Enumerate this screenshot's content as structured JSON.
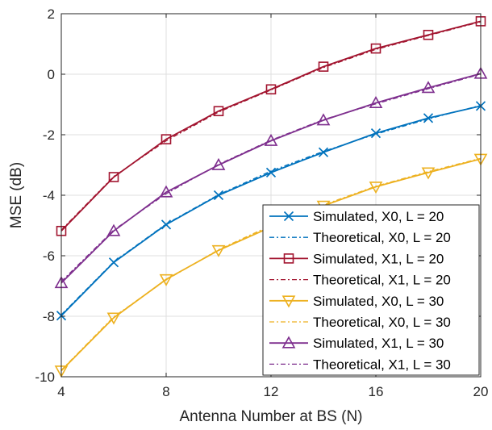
{
  "chart_data": {
    "type": "line",
    "xlabel": "Antenna Number at BS (N)",
    "ylabel": "MSE (dB)",
    "xlim": [
      4,
      20
    ],
    "ylim": [
      -10,
      2
    ],
    "xticks": [
      4,
      8,
      12,
      16,
      20
    ],
    "yticks": [
      -10,
      -8,
      -6,
      -4,
      -2,
      0,
      2
    ],
    "grid": true,
    "legend_position": "lower-right",
    "x": [
      4,
      6,
      8,
      10,
      12,
      14,
      16,
      18,
      20
    ],
    "series": [
      {
        "name": "Simulated, X0, L = 20",
        "values": [
          -7.98,
          -6.22,
          -4.97,
          -4.0,
          -3.25,
          -2.58,
          -1.95,
          -1.45,
          -1.05
        ],
        "color": "#0072BD",
        "line": "solid",
        "marker": "x"
      },
      {
        "name": "Theoretical, X0, L = 20",
        "values": [
          -7.95,
          -6.2,
          -4.95,
          -3.98,
          -3.2,
          -2.55,
          -1.98,
          -1.48,
          -1.03
        ],
        "color": "#0072BD",
        "line": "dashdot",
        "marker": "none"
      },
      {
        "name": "Simulated, X1, L = 20",
        "values": [
          -5.18,
          -3.4,
          -2.15,
          -1.22,
          -0.5,
          0.25,
          0.85,
          1.3,
          1.75
        ],
        "color": "#A2142F",
        "line": "solid",
        "marker": "square"
      },
      {
        "name": "Theoretical, X1, L = 20",
        "values": [
          -5.15,
          -3.38,
          -2.2,
          -1.25,
          -0.52,
          0.22,
          0.82,
          1.28,
          1.73
        ],
        "color": "#A2142F",
        "line": "dashdot",
        "marker": "none"
      },
      {
        "name": "Simulated, X0, L = 30",
        "values": [
          -9.8,
          -8.05,
          -6.78,
          -5.82,
          -5.05,
          -4.35,
          -3.72,
          -3.25,
          -2.8
        ],
        "color": "#EDB120",
        "line": "solid",
        "marker": "triangle-down"
      },
      {
        "name": "Theoretical, X0,  L = 30",
        "values": [
          -9.78,
          -8.02,
          -6.8,
          -5.8,
          -5.0,
          -4.32,
          -3.7,
          -3.22,
          -2.78
        ],
        "color": "#EDB120",
        "line": "dashdot",
        "marker": "none"
      },
      {
        "name": "Simulated, X1, L = 30",
        "values": [
          -6.9,
          -5.18,
          -3.9,
          -3.0,
          -2.2,
          -1.52,
          -0.95,
          -0.45,
          0.02
        ],
        "color": "#7E2F8E",
        "line": "solid",
        "marker": "triangle-up"
      },
      {
        "name": "Theoretical, X1, L = 30",
        "values": [
          -6.85,
          -5.15,
          -3.95,
          -2.98,
          -2.18,
          -1.5,
          -0.98,
          -0.48,
          0.0
        ],
        "color": "#7E2F8E",
        "line": "dashdot",
        "marker": "none"
      }
    ]
  }
}
